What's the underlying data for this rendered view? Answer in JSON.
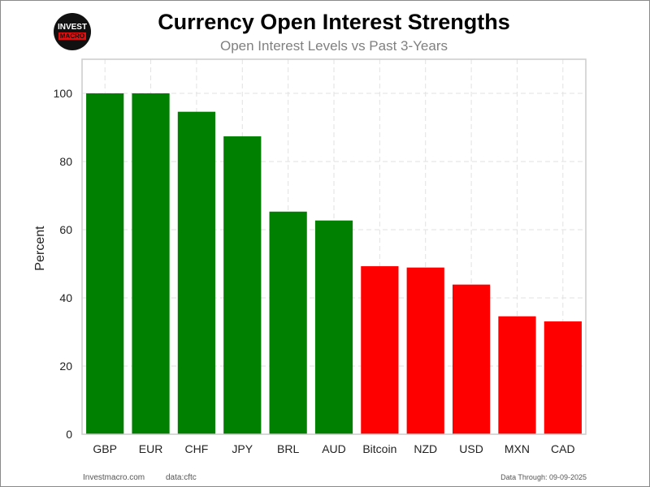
{
  "header": {
    "logo_top": "INVEST",
    "logo_bottom": "MACRO",
    "title": "Currency Open Interest Strengths",
    "subtitle": "Open Interest Levels vs Past 3-Years"
  },
  "footer": {
    "site": "Investmacro.com",
    "source": "data:cftc",
    "date": "Data Through: 09-09-2025"
  },
  "colors": {
    "positive": "#008000",
    "negative": "#ff0000",
    "grid": "#e2e2e2",
    "axis": "#cccccc"
  },
  "chart_data": {
    "type": "bar",
    "title": "Currency Open Interest Strengths",
    "subtitle": "Open Interest Levels vs Past 3-Years",
    "xlabel": "",
    "ylabel": "Percent",
    "ylim": [
      0,
      110
    ],
    "yticks": [
      0,
      20,
      40,
      60,
      80,
      100
    ],
    "grid": true,
    "categories": [
      "GBP",
      "EUR",
      "CHF",
      "JPY",
      "BRL",
      "AUD",
      "Bitcoin",
      "NZD",
      "USD",
      "MXN",
      "CAD"
    ],
    "values": [
      100,
      100,
      94.6,
      87.4,
      65.3,
      62.7,
      49.3,
      48.9,
      43.9,
      34.6,
      33.1
    ],
    "bar_colors": [
      "#008000",
      "#008000",
      "#008000",
      "#008000",
      "#008000",
      "#008000",
      "#ff0000",
      "#ff0000",
      "#ff0000",
      "#ff0000",
      "#ff0000"
    ]
  }
}
